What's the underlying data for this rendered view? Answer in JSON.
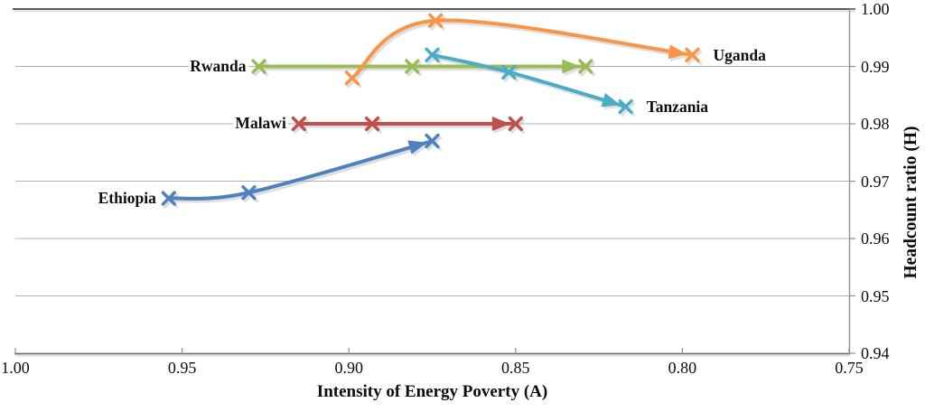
{
  "chart_data": {
    "type": "line",
    "title": "",
    "xlabel": "Intensity of Energy Poverty (A)",
    "ylabel": "Headcount ratio (H)",
    "x_axis": {
      "min": 0.75,
      "max": 1.0,
      "reversed": true,
      "ticks": [
        {
          "label": "1.00",
          "value": 1.0
        },
        {
          "label": "0.95",
          "value": 0.95
        },
        {
          "label": "0.90",
          "value": 0.9
        },
        {
          "label": "0.85",
          "value": 0.85
        },
        {
          "label": "0.80",
          "value": 0.8
        },
        {
          "label": "0.75",
          "value": 0.75
        }
      ]
    },
    "y_axis": {
      "min": 0.94,
      "max": 1.0,
      "side": "right",
      "ticks": [
        {
          "label": "1.00",
          "value": 1.0
        },
        {
          "label": "0.99",
          "value": 0.99
        },
        {
          "label": "0.98",
          "value": 0.98
        },
        {
          "label": "0.97",
          "value": 0.97
        },
        {
          "label": "0.96",
          "value": 0.96
        },
        {
          "label": "0.95",
          "value": 0.95
        },
        {
          "label": "0.94",
          "value": 0.94
        }
      ]
    },
    "grid": "horizontal",
    "legend": "inline-series-labels",
    "marker": "x",
    "line_style": "smooth-with-end-arrow",
    "series": [
      {
        "name": "Ethiopia",
        "color": "#4F81BD",
        "label_side": "left",
        "points": [
          [
            0.954,
            0.967
          ],
          [
            0.93,
            0.968
          ],
          [
            0.875,
            0.977
          ]
        ]
      },
      {
        "name": "Malawi",
        "color": "#C0504D",
        "label_side": "left",
        "points": [
          [
            0.915,
            0.98
          ],
          [
            0.893,
            0.98
          ],
          [
            0.85,
            0.98
          ]
        ]
      },
      {
        "name": "Rwanda",
        "color": "#9BBB59",
        "label_side": "left",
        "points": [
          [
            0.927,
            0.99
          ],
          [
            0.881,
            0.99
          ],
          [
            0.829,
            0.99
          ]
        ]
      },
      {
        "name": "Uganda",
        "color": "#F79646",
        "label_side": "right",
        "points": [
          [
            0.899,
            0.988
          ],
          [
            0.874,
            0.998
          ],
          [
            0.797,
            0.992
          ]
        ]
      },
      {
        "name": "Tanzania",
        "color": "#4BACC6",
        "label_side": "right",
        "points": [
          [
            0.875,
            0.992
          ],
          [
            0.852,
            0.989
          ],
          [
            0.817,
            0.983
          ]
        ]
      }
    ],
    "colors": {
      "gridline": "#b0b0b0",
      "axis_dark": "#5a5a5a",
      "axis_light": "#8c8c8c",
      "text": "#0d0d0d",
      "shadow": "#9e9e9e"
    }
  }
}
